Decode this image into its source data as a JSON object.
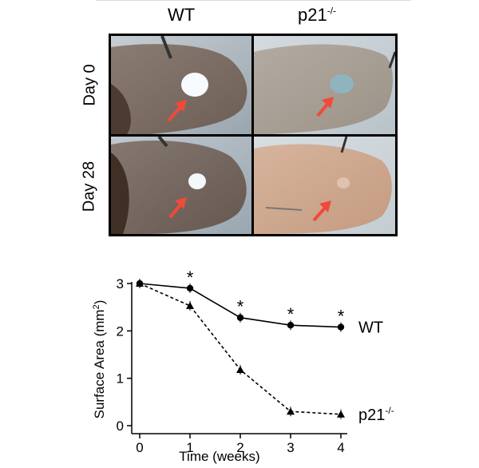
{
  "figure": {
    "columns": [
      {
        "label": "WT",
        "sup": ""
      },
      {
        "label": "p21",
        "sup": "-/-"
      }
    ],
    "rows": [
      "Day 0",
      "Day 28"
    ],
    "arrow_color": "#f04a3a"
  },
  "chart_data": {
    "type": "line",
    "xlabel": "Time (weeks)",
    "ylabel": "Surface Area (mm",
    "ylabel_sup": "2",
    "ylabel_end": ")",
    "xlim": [
      0,
      4
    ],
    "ylim": [
      0,
      3
    ],
    "xticks": [
      "0",
      "1",
      "2",
      "3",
      "4"
    ],
    "yticks": [
      "0",
      "1",
      "2",
      "3"
    ],
    "series": [
      {
        "name": "WT",
        "name_sup": "",
        "x": [
          0,
          1,
          2,
          3,
          4
        ],
        "values": [
          3.0,
          2.9,
          2.28,
          2.12,
          2.08
        ],
        "marker": "circle",
        "line": "solid"
      },
      {
        "name": "p21",
        "name_sup": "-/-",
        "x": [
          0,
          1,
          2,
          3,
          4
        ],
        "values": [
          3.0,
          2.53,
          1.18,
          0.3,
          0.24
        ],
        "marker": "triangle",
        "line": "dashed"
      }
    ],
    "significance": {
      "symbol": "*",
      "x": [
        1,
        2,
        3,
        4
      ]
    }
  }
}
